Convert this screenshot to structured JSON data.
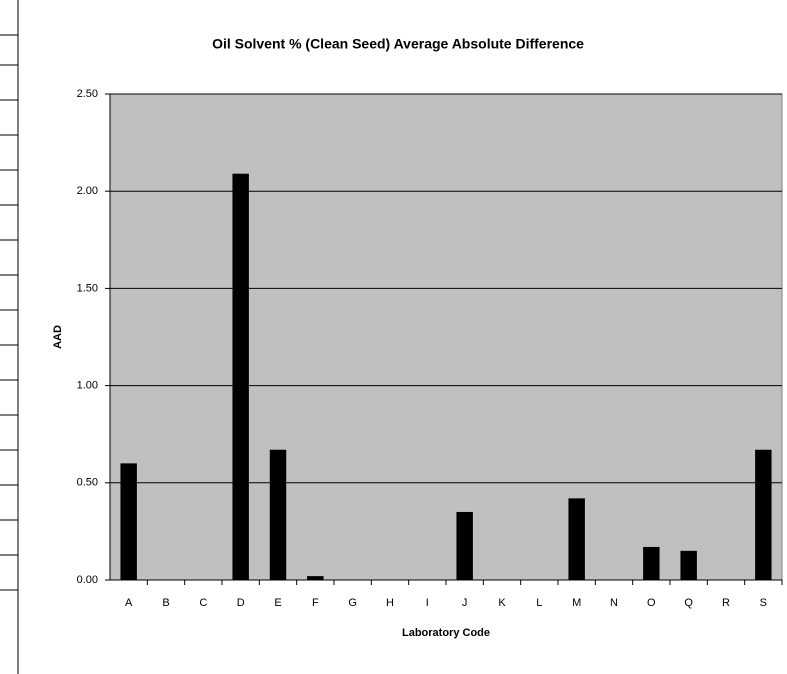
{
  "chart_data": {
    "type": "bar",
    "title": "Oil Solvent % (Clean Seed) Average Absolute Difference",
    "x_label": "Laboratory Code",
    "y_label": "AAD",
    "categories": [
      "A",
      "B",
      "C",
      "D",
      "E",
      "F",
      "G",
      "H",
      "I",
      "J",
      "K",
      "L",
      "M",
      "N",
      "O",
      "Q",
      "R",
      "S"
    ],
    "values": [
      0.6,
      null,
      null,
      2.09,
      0.67,
      0.02,
      null,
      null,
      null,
      0.35,
      null,
      null,
      0.42,
      null,
      0.17,
      0.15,
      null,
      0.67
    ],
    "color": "#000000",
    "plot_background": "#c0c0c0",
    "ylim": [
      0,
      2.5
    ],
    "yticks": [
      {
        "value": 0,
        "label": "0.00"
      },
      {
        "value": 0.5,
        "label": "0.50"
      },
      {
        "value": 1,
        "label": "1.00"
      },
      {
        "value": 1.5,
        "label": "1.50"
      },
      {
        "value": 2,
        "label": "2.00"
      },
      {
        "value": 2.5,
        "label": "2.50"
      }
    ],
    "grid": true
  }
}
